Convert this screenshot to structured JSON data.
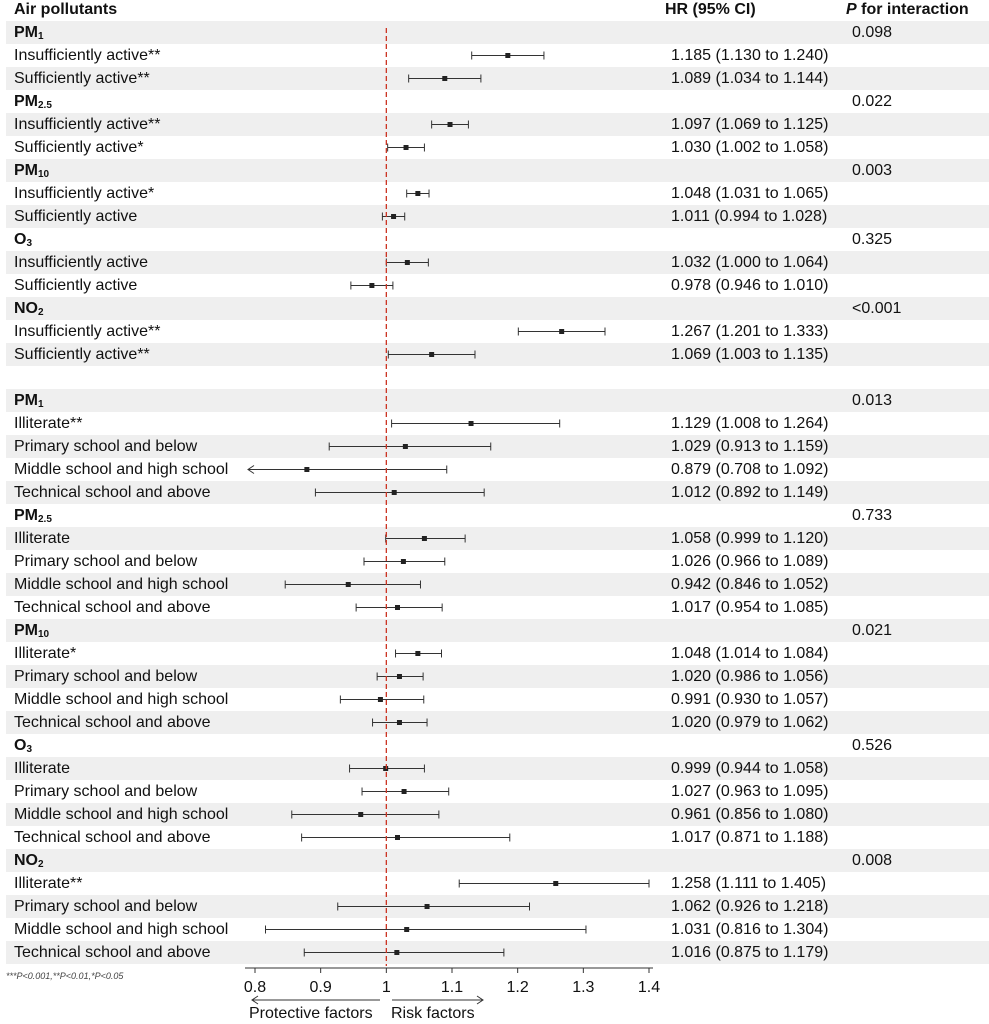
{
  "headers": {
    "col1": "Air pollutants",
    "col2": "HR (95% CI)",
    "col3_italic": "P",
    "col3_rest": " for interaction"
  },
  "footnote": "***P<0.001,**P<0.01,*P<0.05",
  "direction": {
    "left": "Protective factors",
    "right": "Risk factors"
  },
  "colors": {
    "reference_line": "#cc3322",
    "row_shade": "#efefef",
    "marker": "#222222"
  },
  "chart_data": {
    "type": "forest",
    "reference_value": 1,
    "xlim": [
      0.8,
      1.4
    ],
    "xticks": [
      "0.8",
      "0.9",
      "1",
      "1.1",
      "1.2",
      "1.3",
      "1.4"
    ],
    "rows": [
      {
        "kind": "header",
        "name": "PM",
        "sub": "1",
        "p": "0.098"
      },
      {
        "kind": "data",
        "label": "Insufficiently active**",
        "hr": 1.185,
        "lo": 1.13,
        "hi": 1.24,
        "text": "1.185 (1.130 to 1.240)"
      },
      {
        "kind": "data",
        "label": "Sufficiently active**",
        "hr": 1.089,
        "lo": 1.034,
        "hi": 1.144,
        "text": "1.089 (1.034 to 1.144)"
      },
      {
        "kind": "header",
        "name": "PM",
        "sub": "2.5",
        "p": "0.022"
      },
      {
        "kind": "data",
        "label": "Insufficiently active**",
        "hr": 1.097,
        "lo": 1.069,
        "hi": 1.125,
        "text": "1.097 (1.069 to 1.125)"
      },
      {
        "kind": "data",
        "label": "Sufficiently active*",
        "hr": 1.03,
        "lo": 1.002,
        "hi": 1.058,
        "text": "1.030 (1.002 to 1.058)"
      },
      {
        "kind": "header",
        "name": "PM",
        "sub": "10",
        "p": "0.003"
      },
      {
        "kind": "data",
        "label": "Insufficiently active*",
        "hr": 1.048,
        "lo": 1.031,
        "hi": 1.065,
        "text": "1.048 (1.031 to 1.065)"
      },
      {
        "kind": "data",
        "label": "Sufficiently active",
        "hr": 1.011,
        "lo": 0.994,
        "hi": 1.028,
        "text": "1.011 (0.994 to 1.028)"
      },
      {
        "kind": "header",
        "name": "O",
        "sub": "3",
        "p": "0.325"
      },
      {
        "kind": "data",
        "label": "Insufficiently active",
        "hr": 1.032,
        "lo": 1.0,
        "hi": 1.064,
        "text": "1.032 (1.000 to 1.064)"
      },
      {
        "kind": "data",
        "label": "Sufficiently active",
        "hr": 0.978,
        "lo": 0.946,
        "hi": 1.01,
        "text": "0.978 (0.946 to 1.010)"
      },
      {
        "kind": "header",
        "name": "NO",
        "sub": "2",
        "p": "<0.001"
      },
      {
        "kind": "data",
        "label": "Insufficiently active**",
        "hr": 1.267,
        "lo": 1.201,
        "hi": 1.333,
        "text": "1.267 (1.201 to 1.333)"
      },
      {
        "kind": "data",
        "label": "Sufficiently active**",
        "hr": 1.069,
        "lo": 1.003,
        "hi": 1.135,
        "text": "1.069 (1.003 to 1.135)"
      },
      {
        "kind": "blank"
      },
      {
        "kind": "header",
        "name": "PM",
        "sub": "1",
        "p": "0.013"
      },
      {
        "kind": "data",
        "label": "Illiterate**",
        "hr": 1.129,
        "lo": 1.008,
        "hi": 1.264,
        "text": "1.129 (1.008 to 1.264)"
      },
      {
        "kind": "data",
        "label": "Primary school and below",
        "hr": 1.029,
        "lo": 0.913,
        "hi": 1.159,
        "text": "1.029 (0.913 to 1.159)"
      },
      {
        "kind": "data",
        "label": "Middle school and high school",
        "hr": 0.879,
        "lo": 0.708,
        "hi": 1.092,
        "text": "0.879 (0.708 to 1.092)"
      },
      {
        "kind": "data",
        "label": "Technical school and above",
        "hr": 1.012,
        "lo": 0.892,
        "hi": 1.149,
        "text": "1.012 (0.892 to 1.149)"
      },
      {
        "kind": "header",
        "name": "PM",
        "sub": "2.5",
        "p": "0.733"
      },
      {
        "kind": "data",
        "label": "Illiterate",
        "hr": 1.058,
        "lo": 0.999,
        "hi": 1.12,
        "text": "1.058 (0.999 to 1.120)"
      },
      {
        "kind": "data",
        "label": "Primary school and below",
        "hr": 1.026,
        "lo": 0.966,
        "hi": 1.089,
        "text": "1.026 (0.966 to 1.089)"
      },
      {
        "kind": "data",
        "label": "Middle school and high school",
        "hr": 0.942,
        "lo": 0.846,
        "hi": 1.052,
        "text": "0.942 (0.846 to 1.052)"
      },
      {
        "kind": "data",
        "label": "Technical school and above",
        "hr": 1.017,
        "lo": 0.954,
        "hi": 1.085,
        "text": "1.017 (0.954 to 1.085)"
      },
      {
        "kind": "header",
        "name": "PM",
        "sub": "10",
        "p": "0.021"
      },
      {
        "kind": "data",
        "label": "Illiterate*",
        "hr": 1.048,
        "lo": 1.014,
        "hi": 1.084,
        "text": "1.048 (1.014 to 1.084)"
      },
      {
        "kind": "data",
        "label": "Primary school and below",
        "hr": 1.02,
        "lo": 0.986,
        "hi": 1.056,
        "text": "1.020 (0.986 to 1.056)"
      },
      {
        "kind": "data",
        "label": "Middle school and high school",
        "hr": 0.991,
        "lo": 0.93,
        "hi": 1.057,
        "text": "0.991 (0.930 to 1.057)"
      },
      {
        "kind": "data",
        "label": "Technical school and above",
        "hr": 1.02,
        "lo": 0.979,
        "hi": 1.062,
        "text": "1.020 (0.979 to 1.062)"
      },
      {
        "kind": "header",
        "name": "O",
        "sub": "3",
        "p": "0.526"
      },
      {
        "kind": "data",
        "label": "Illiterate",
        "hr": 0.999,
        "lo": 0.944,
        "hi": 1.058,
        "text": "0.999 (0.944 to 1.058)"
      },
      {
        "kind": "data",
        "label": "Primary school and below",
        "hr": 1.027,
        "lo": 0.963,
        "hi": 1.095,
        "text": "1.027 (0.963 to 1.095)"
      },
      {
        "kind": "data",
        "label": "Middle school and high school",
        "hr": 0.961,
        "lo": 0.856,
        "hi": 1.08,
        "text": "0.961 (0.856 to 1.080)"
      },
      {
        "kind": "data",
        "label": "Technical school and above",
        "hr": 1.017,
        "lo": 0.871,
        "hi": 1.188,
        "text": "1.017 (0.871 to 1.188)"
      },
      {
        "kind": "header",
        "name": "NO",
        "sub": "2",
        "p": "0.008"
      },
      {
        "kind": "data",
        "label": "Illiterate**",
        "hr": 1.258,
        "lo": 1.111,
        "hi": 1.405,
        "text": "1.258 (1.111 to 1.405)"
      },
      {
        "kind": "data",
        "label": "Primary school and below",
        "hr": 1.062,
        "lo": 0.926,
        "hi": 1.218,
        "text": "1.062 (0.926 to 1.218)"
      },
      {
        "kind": "data",
        "label": "Middle school and high school",
        "hr": 1.031,
        "lo": 0.816,
        "hi": 1.304,
        "text": "1.031 (0.816 to 1.304)"
      },
      {
        "kind": "data",
        "label": "Technical school and above",
        "hr": 1.016,
        "lo": 0.875,
        "hi": 1.179,
        "text": "1.016 (0.875 to 1.179)"
      }
    ]
  }
}
